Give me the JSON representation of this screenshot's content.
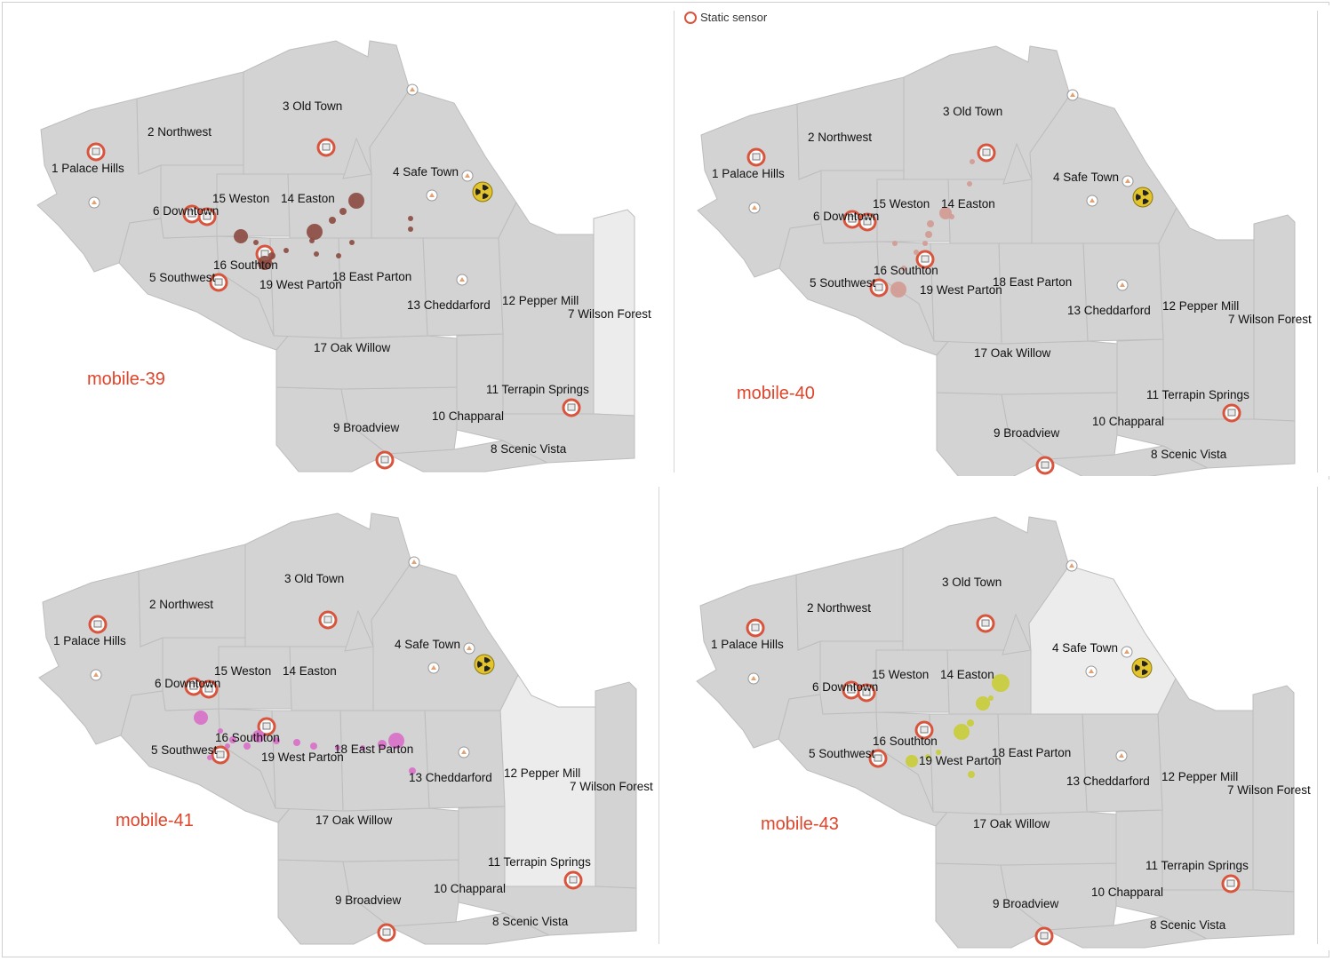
{
  "legend": {
    "static_sensor_label": "Static sensor"
  },
  "regions": [
    {
      "id": "r1",
      "label": "1 Palace Hills"
    },
    {
      "id": "r2",
      "label": "2 Northwest"
    },
    {
      "id": "r3",
      "label": "3 Old Town"
    },
    {
      "id": "r4",
      "label": "4 Safe Town"
    },
    {
      "id": "r5",
      "label": "5 Southwest"
    },
    {
      "id": "r6",
      "label": "6 Downtown"
    },
    {
      "id": "r7",
      "label": "7 Wilson Forest"
    },
    {
      "id": "r8",
      "label": "8 Scenic Vista"
    },
    {
      "id": "r9",
      "label": "9 Broadview"
    },
    {
      "id": "r10",
      "label": "10 Chapparal"
    },
    {
      "id": "r11",
      "label": "11 Terrapin Springs"
    },
    {
      "id": "r12",
      "label": "12 Pepper Mill"
    },
    {
      "id": "r13",
      "label": "13 Cheddarford"
    },
    {
      "id": "r14",
      "label": "14 Easton"
    },
    {
      "id": "r15",
      "label": "15 Weston"
    },
    {
      "id": "r16",
      "label": "16 Southton"
    },
    {
      "id": "r17",
      "label": "17 Oak Willow"
    },
    {
      "id": "r18",
      "label": "18 East Parton"
    },
    {
      "id": "r19",
      "label": "19 West Parton"
    }
  ],
  "panels": [
    {
      "id": "mobile-39",
      "title": "mobile-39",
      "color": "#8b4a40",
      "opacity": 0.9,
      "highlight": "7 Wilson Forest"
    },
    {
      "id": "mobile-40",
      "title": "mobile-40",
      "color": "#d19a92",
      "opacity": 0.9,
      "highlight": ""
    },
    {
      "id": "mobile-41",
      "title": "mobile-41",
      "color": "#d873c8",
      "opacity": 0.95,
      "highlight": "12 Pepper Mill"
    },
    {
      "id": "mobile-43",
      "title": "mobile-43",
      "color": "#c9cc3e",
      "opacity": 0.95,
      "highlight": "4 Safe Town"
    }
  ],
  "colors": {
    "map_fill": "#d3d3d3",
    "map_border": "#ffffff",
    "highlight_fill": "#ececec",
    "title_color": "#e0442a",
    "hospital_ring": "#d9543c",
    "nuclear": "#e3c42c"
  }
}
